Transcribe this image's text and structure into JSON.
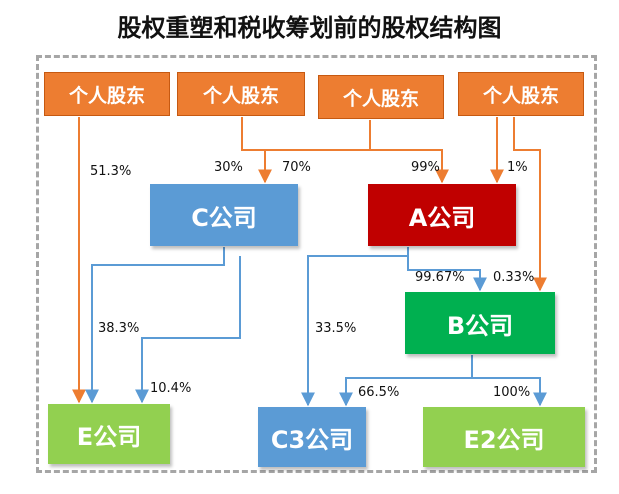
{
  "title": "股权重塑和税收筹划前的股权结构图",
  "colors": {
    "holder_fill": "#ed7d31",
    "holder_arrow": "#ed7d31",
    "company_arrow": "#5b9bd5",
    "c_company": "#5b9bd5",
    "a_company": "#c00000",
    "b_company": "#00b050",
    "e_company": "#92d050",
    "c3_company": "#5b9bd5",
    "e2_company": "#92d050"
  },
  "holders": [
    {
      "id": "holder-1",
      "label": "个人股东"
    },
    {
      "id": "holder-2",
      "label": "个人股东"
    },
    {
      "id": "holder-3",
      "label": "个人股东"
    },
    {
      "id": "holder-4",
      "label": "个人股东"
    }
  ],
  "companies": {
    "c": "C公司",
    "a": "A公司",
    "b": "B公司",
    "e": "E公司",
    "c3": "C3公司",
    "e2": "E2公司"
  },
  "percentages": {
    "h1_to_e": "51.3%",
    "h2_to_c": "30%",
    "h3_to_c": "70%",
    "h3_to_a": "99%",
    "h4_to_a": "1%",
    "a_to_b": "99.67%",
    "h4_to_b": "0.33%",
    "c_to_e": "38.3%",
    "c_to_c3": "33.5%",
    "a_to_e": "10.4%",
    "b_to_c3": "66.5%",
    "b_to_e2": "100%"
  }
}
